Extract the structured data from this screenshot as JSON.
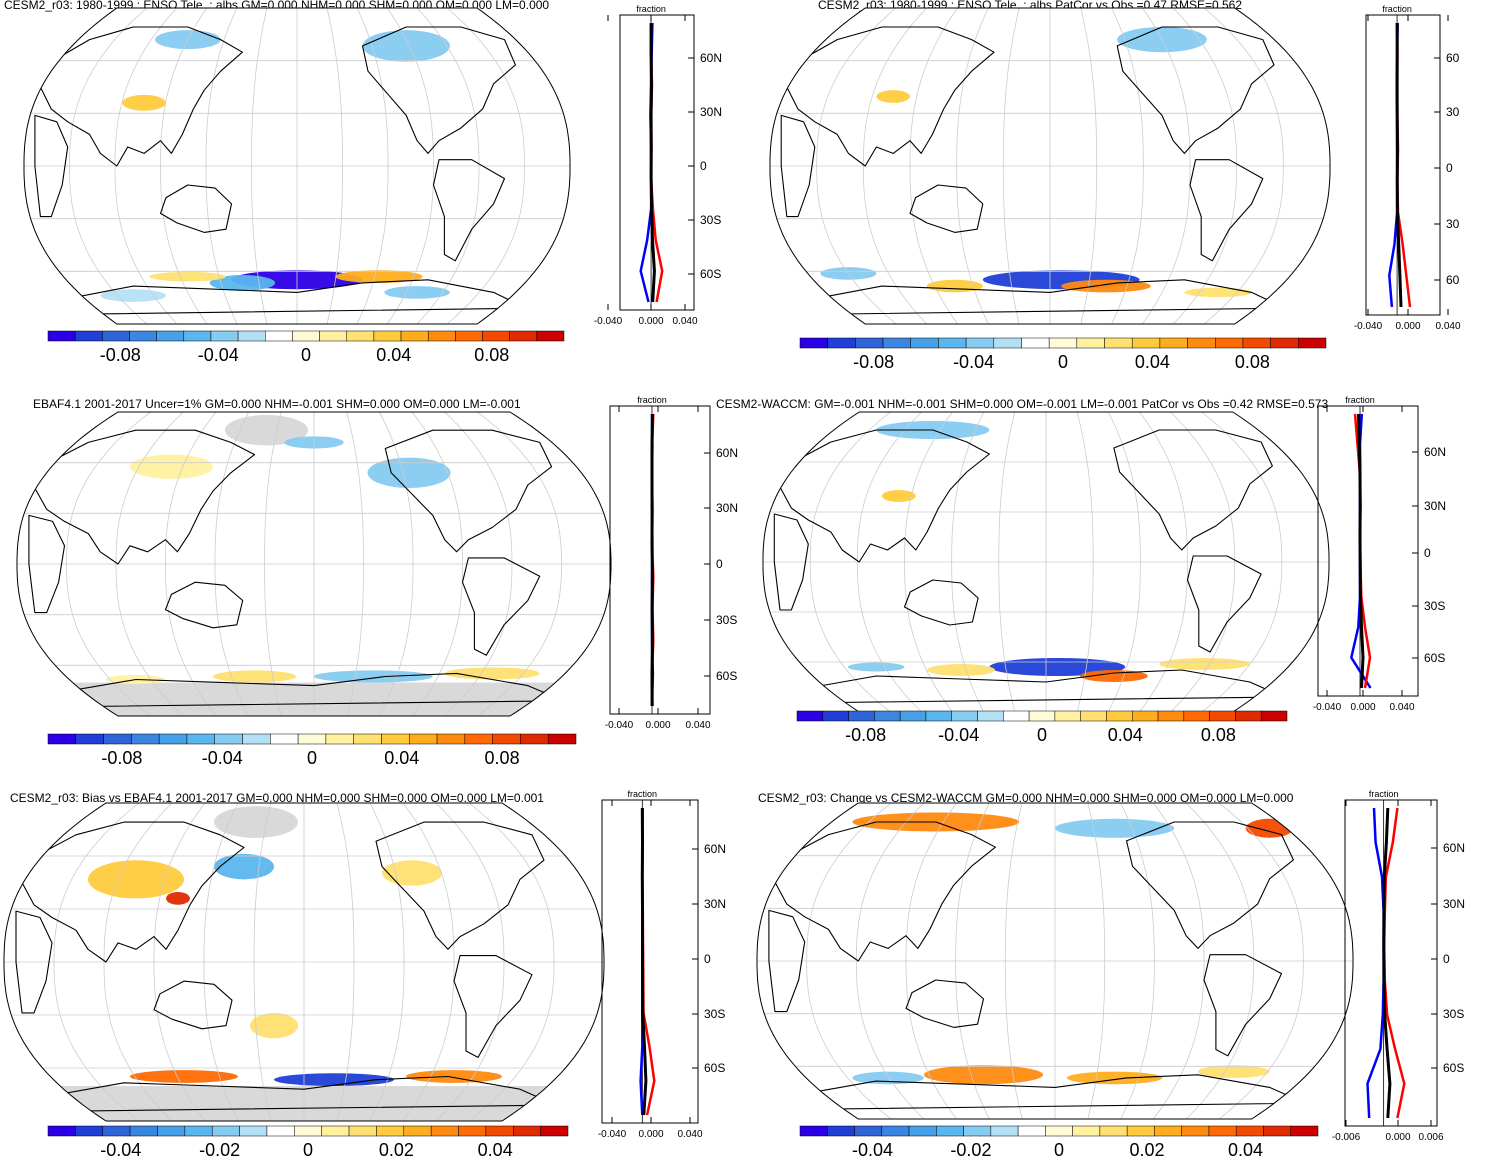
{
  "colors": {
    "ocean": "#ffffff",
    "land_outline": "#000000",
    "grid": "#cccccc",
    "missing": "#d9d9d9",
    "zonal_model": "#ff0000",
    "zonal_obs": "#0000ff",
    "zonal_mean": "#000000",
    "palette": [
      "#2b00e6",
      "#1f3fd6",
      "#2f64d9",
      "#3b86e0",
      "#46a1e8",
      "#5ab6ee",
      "#86cbf0",
      "#b4e0f5",
      "#ffffff",
      "#fffbd6",
      "#fff1a0",
      "#ffe070",
      "#ffcb3d",
      "#ffad1f",
      "#ff8a10",
      "#ff6a05",
      "#f24a00",
      "#e02a00",
      "#cc0000"
    ]
  },
  "panels": [
    {
      "id": "top-left",
      "title": "CESM2_r03: 1980-1999 : ENSO Tele. : albs GM=0.000 NHM=0.000 SHM=0.000 OM=0.000 LM=0.000",
      "colorbar_labels": [
        "-0.08",
        "-0.04",
        "0",
        "0.04",
        "0.08"
      ],
      "profile_header": "fraction",
      "profile_ticks": [
        "-0.040",
        "0.000",
        "0.040"
      ],
      "lat_labels": [
        "60N",
        "30N",
        "0",
        "30S",
        "60S"
      ]
    },
    {
      "id": "top-right",
      "title": "CESM2_r03: 1980-1999 : ENSO Tele. : albs PatCor vs Obs =0.47 RMSE=0.562",
      "colorbar_labels": [
        "-0.08",
        "-0.04",
        "0",
        "0.04",
        "0.08"
      ],
      "profile_header": "fraction",
      "profile_ticks": [
        "-0.040",
        "0.000",
        "0.040"
      ],
      "lat_labels": [
        "60",
        "30",
        "0",
        "30",
        "60"
      ]
    },
    {
      "id": "middle-left",
      "title": "EBAF4.1 2001-2017 Uncer=1% GM=0.000 NHM=-0.001 SHM=0.000 OM=0.000 LM=-0.001",
      "colorbar_labels": [
        "-0.08",
        "-0.04",
        "0",
        "0.04",
        "0.08"
      ],
      "profile_header": "fraction",
      "profile_ticks": [
        "-0.040",
        "0.000",
        "0.040"
      ],
      "lat_labels": [
        "60N",
        "30N",
        "0",
        "30S",
        "60S"
      ]
    },
    {
      "id": "middle-right",
      "title": "CESM2-WACCM: GM=-0.001 NHM=-0.001 SHM=0.000 OM=-0.001 LM=-0.001 PatCor vs Obs =0.42 RMSE=0.573",
      "colorbar_labels": [
        "-0.08",
        "-0.04",
        "0",
        "0.04",
        "0.08"
      ],
      "profile_header": "fraction",
      "profile_ticks": [
        "-0.040",
        "0.000",
        "0.040"
      ],
      "lat_labels": [
        "60N",
        "30N",
        "0",
        "30S",
        "60S"
      ]
    },
    {
      "id": "bottom-left",
      "title": "CESM2_r03: Bias vs EBAF4.1 2001-2017 GM=0.000 NHM=0.000 SHM=0.000 OM=0.000 LM=0.001",
      "colorbar_labels": [
        "-0.04",
        "-0.02",
        "0",
        "0.02",
        "0.04"
      ],
      "profile_header": "fraction",
      "profile_ticks": [
        "-0.040",
        "0.000",
        "0.040"
      ],
      "lat_labels": [
        "60N",
        "30N",
        "0",
        "30S",
        "60S"
      ]
    },
    {
      "id": "bottom-right",
      "title": "CESM2_r03: Change vs CESM2-WACCM GM=0.000 NHM=0.000 SHM=0.000 OM=0.000 LM=0.000",
      "colorbar_labels": [
        "-0.04",
        "-0.02",
        "0",
        "0.02",
        "0.04"
      ],
      "profile_header": "fraction",
      "profile_ticks": [
        "-0.006",
        "0.000",
        "0.006"
      ],
      "lat_labels": [
        "60N",
        "30N",
        "0",
        "30S",
        "60S"
      ]
    }
  ],
  "chart_data": [
    {
      "type": "heatmap",
      "title": "CESM2_r03: 1980-1999 : ENSO Tele. : albs GM=0.000 NHM=0.000 SHM=0.000 OM=0.000 LM=0.000",
      "projection": "Robinson (Pacific-centered)",
      "colorbar_range": [
        -0.1,
        0.1
      ],
      "colorbar_ticks": [
        -0.08,
        -0.04,
        0,
        0.04,
        0.08
      ],
      "zonal_profile": {
        "xlabel": "fraction",
        "xlim": [
          -0.06,
          0.06
        ],
        "xticks": [
          -0.04,
          0.0,
          0.04
        ],
        "ylim": [
          -80,
          80
        ],
        "yticks": [
          60,
          30,
          0,
          -30,
          -60
        ]
      }
    },
    {
      "type": "heatmap",
      "title": "CESM2_r03: 1980-1999 : ENSO Tele. : albs PatCor vs Obs =0.47 RMSE=0.562",
      "projection": "Robinson (Pacific-centered)",
      "colorbar_range": [
        -0.1,
        0.1
      ],
      "colorbar_ticks": [
        -0.08,
        -0.04,
        0,
        0.04,
        0.08
      ],
      "zonal_profile": {
        "xlabel": "fraction",
        "xlim": [
          -0.06,
          0.06
        ],
        "xticks": [
          -0.04,
          0.0,
          0.04
        ],
        "ylim": [
          -80,
          80
        ],
        "yticks": [
          60,
          30,
          0,
          -30,
          -60
        ]
      }
    },
    {
      "type": "heatmap",
      "title": "EBAF4.1 2001-2017 Uncer=1% GM=0.000 NHM=-0.001 SHM=0.000 OM=0.000 LM=-0.001",
      "projection": "Robinson (Pacific-centered)",
      "colorbar_range": [
        -0.1,
        0.1
      ],
      "colorbar_ticks": [
        -0.08,
        -0.04,
        0,
        0.04,
        0.08
      ],
      "zonal_profile": {
        "xlabel": "fraction",
        "xlim": [
          -0.06,
          0.06
        ],
        "xticks": [
          -0.04,
          0.0,
          0.04
        ],
        "ylim": [
          -80,
          80
        ],
        "yticks": [
          60,
          30,
          0,
          -30,
          -60
        ]
      }
    },
    {
      "type": "heatmap",
      "title": "CESM2-WACCM: GM=-0.001 NHM=-0.001 SHM=0.000 OM=-0.001 LM=-0.001 PatCor vs Obs =0.42 RMSE=0.573",
      "projection": "Robinson (Pacific-centered)",
      "colorbar_range": [
        -0.1,
        0.1
      ],
      "colorbar_ticks": [
        -0.08,
        -0.04,
        0,
        0.04,
        0.08
      ],
      "zonal_profile": {
        "xlabel": "fraction",
        "xlim": [
          -0.06,
          0.06
        ],
        "xticks": [
          -0.04,
          0.0,
          0.04
        ],
        "ylim": [
          -80,
          80
        ],
        "yticks": [
          60,
          30,
          0,
          -30,
          -60
        ]
      }
    },
    {
      "type": "heatmap",
      "title": "CESM2_r03: Bias vs EBAF4.1 2001-2017 GM=0.000 NHM=0.000 SHM=0.000 OM=0.000 LM=0.001",
      "projection": "Robinson (Pacific-centered)",
      "colorbar_range": [
        -0.05,
        0.05
      ],
      "colorbar_ticks": [
        -0.04,
        -0.02,
        0,
        0.02,
        0.04
      ],
      "zonal_profile": {
        "xlabel": "fraction",
        "xlim": [
          -0.06,
          0.06
        ],
        "xticks": [
          -0.04,
          0.0,
          0.04
        ],
        "ylim": [
          -80,
          80
        ],
        "yticks": [
          60,
          30,
          0,
          -30,
          -60
        ]
      }
    },
    {
      "type": "heatmap",
      "title": "CESM2_r03: Change vs CESM2-WACCM GM=0.000 NHM=0.000 SHM=0.000 OM=0.000 LM=0.000",
      "projection": "Robinson (Pacific-centered)",
      "colorbar_range": [
        -0.05,
        0.05
      ],
      "colorbar_ticks": [
        -0.04,
        -0.02,
        0,
        0.02,
        0.04
      ],
      "zonal_profile": {
        "xlabel": "fraction",
        "xlim": [
          -0.009,
          0.009
        ],
        "xticks": [
          -0.006,
          0.0,
          0.006
        ],
        "ylim": [
          -80,
          80
        ],
        "yticks": [
          60,
          30,
          0,
          -30,
          -60
        ]
      }
    }
  ]
}
